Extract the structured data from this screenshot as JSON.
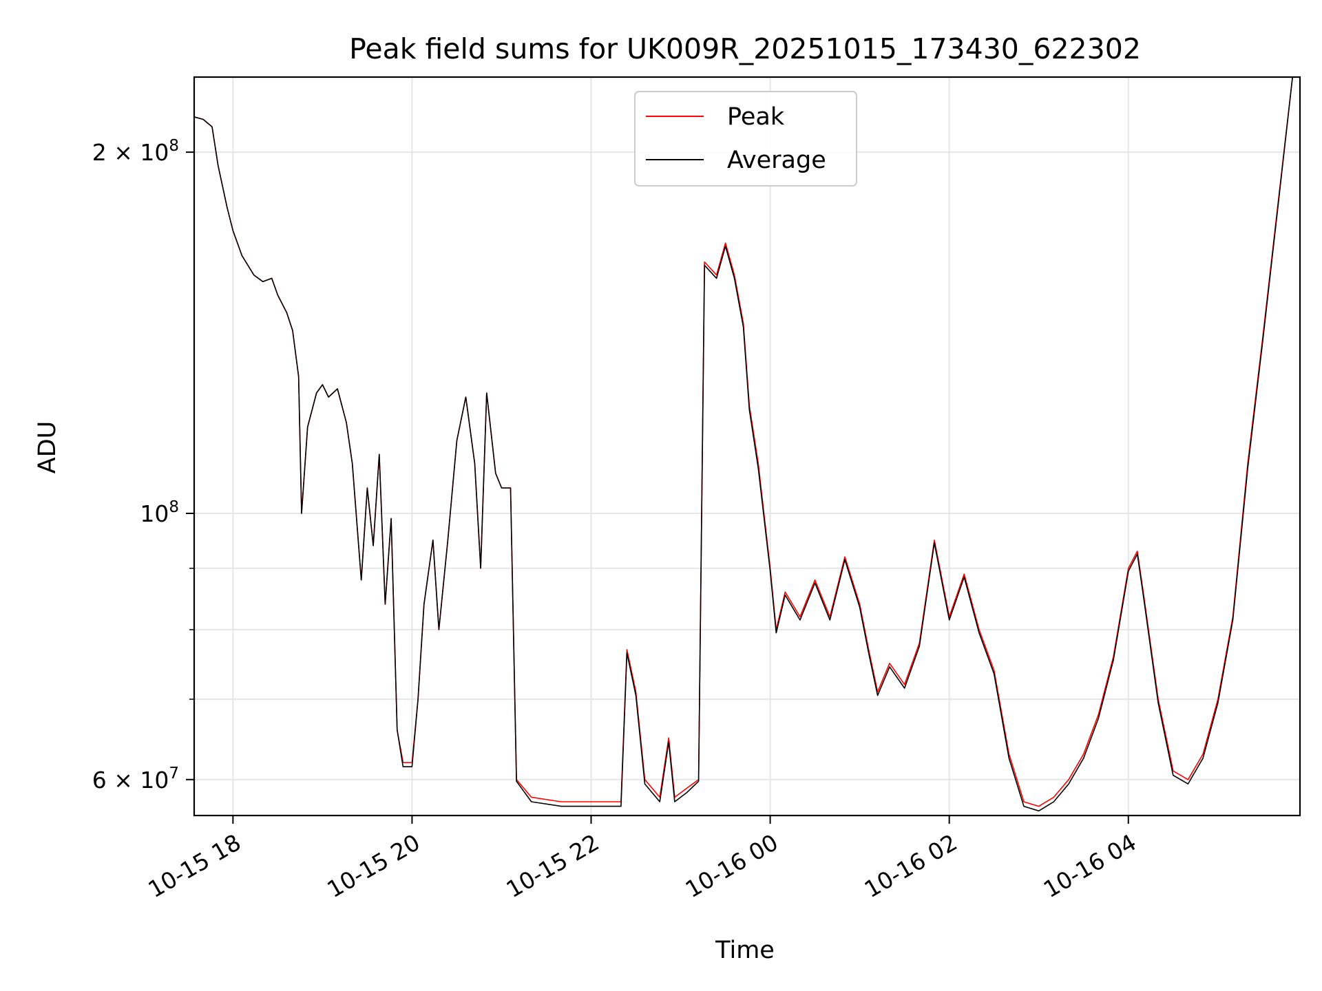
{
  "chart_data": {
    "type": "line",
    "title": "Peak field sums for UK009R_20251015_173430_622302",
    "xlabel": "Time",
    "ylabel": "ADU",
    "x_is_time": true,
    "xlim": [
      "2025-10-15T17:34",
      "2025-10-16T05:55"
    ],
    "ylim": [
      56000000,
      231000000
    ],
    "yscale": "log",
    "grid": true,
    "legend_position": "top-center",
    "x_ticks": [
      {
        "value": "2025-10-15T18:00",
        "label": "10-15 18"
      },
      {
        "value": "2025-10-15T20:00",
        "label": "10-15 20"
      },
      {
        "value": "2025-10-15T22:00",
        "label": "10-15 22"
      },
      {
        "value": "2025-10-16T00:00",
        "label": "10-16 00"
      },
      {
        "value": "2025-10-16T02:00",
        "label": "10-16 02"
      },
      {
        "value": "2025-10-16T04:00",
        "label": "10-16 04"
      }
    ],
    "y_ticks": [
      {
        "value": 60000000,
        "base": "6",
        "exp": "7"
      },
      {
        "value": 100000000,
        "base": "",
        "exp": "8"
      },
      {
        "value": 200000000,
        "base": "2",
        "exp": "8"
      }
    ],
    "y_minor_grid": [
      70000000,
      80000000,
      90000000
    ],
    "x": [
      "2025-10-15T17:34",
      "2025-10-15T17:40",
      "2025-10-15T17:46",
      "2025-10-15T17:50",
      "2025-10-15T17:56",
      "2025-10-15T18:00",
      "2025-10-15T18:06",
      "2025-10-15T18:14",
      "2025-10-15T18:20",
      "2025-10-15T18:26",
      "2025-10-15T18:30",
      "2025-10-15T18:36",
      "2025-10-15T18:40",
      "2025-10-15T18:44",
      "2025-10-15T18:46",
      "2025-10-15T18:50",
      "2025-10-15T18:56",
      "2025-10-15T19:00",
      "2025-10-15T19:04",
      "2025-10-15T19:10",
      "2025-10-15T19:16",
      "2025-10-15T19:20",
      "2025-10-15T19:26",
      "2025-10-15T19:30",
      "2025-10-15T19:34",
      "2025-10-15T19:38",
      "2025-10-15T19:42",
      "2025-10-15T19:46",
      "2025-10-15T19:50",
      "2025-10-15T19:54",
      "2025-10-15T20:00",
      "2025-10-15T20:04",
      "2025-10-15T20:08",
      "2025-10-15T20:14",
      "2025-10-15T20:18",
      "2025-10-15T20:24",
      "2025-10-15T20:30",
      "2025-10-15T20:36",
      "2025-10-15T20:42",
      "2025-10-15T20:46",
      "2025-10-15T20:50",
      "2025-10-15T20:56",
      "2025-10-15T21:00",
      "2025-10-15T21:06",
      "2025-10-15T21:10",
      "2025-10-15T21:20",
      "2025-10-15T21:40",
      "2025-10-15T22:00",
      "2025-10-15T22:20",
      "2025-10-15T22:24",
      "2025-10-15T22:30",
      "2025-10-15T22:36",
      "2025-10-15T22:46",
      "2025-10-15T22:52",
      "2025-10-15T22:56",
      "2025-10-15T23:04",
      "2025-10-15T23:12",
      "2025-10-15T23:16",
      "2025-10-15T23:24",
      "2025-10-15T23:30",
      "2025-10-15T23:36",
      "2025-10-15T23:42",
      "2025-10-15T23:46",
      "2025-10-15T23:52",
      "2025-10-16T00:00",
      "2025-10-16T00:04",
      "2025-10-16T00:10",
      "2025-10-16T00:20",
      "2025-10-16T00:30",
      "2025-10-16T00:40",
      "2025-10-16T00:50",
      "2025-10-16T01:00",
      "2025-10-16T01:06",
      "2025-10-16T01:12",
      "2025-10-16T01:20",
      "2025-10-16T01:30",
      "2025-10-16T01:40",
      "2025-10-16T01:50",
      "2025-10-16T02:00",
      "2025-10-16T02:10",
      "2025-10-16T02:20",
      "2025-10-16T02:30",
      "2025-10-16T02:40",
      "2025-10-16T02:50",
      "2025-10-16T03:00",
      "2025-10-16T03:10",
      "2025-10-16T03:20",
      "2025-10-16T03:30",
      "2025-10-16T03:40",
      "2025-10-16T03:50",
      "2025-10-16T04:00",
      "2025-10-16T04:06",
      "2025-10-16T04:10",
      "2025-10-16T04:20",
      "2025-10-16T04:30",
      "2025-10-16T04:40",
      "2025-10-16T04:50",
      "2025-10-16T05:00",
      "2025-10-16T05:10",
      "2025-10-16T05:20",
      "2025-10-16T05:30",
      "2025-10-16T05:40",
      "2025-10-16T05:50",
      "2025-10-16T05:55"
    ],
    "series": [
      {
        "name": "Peak",
        "color": "#ff0000",
        "values": [
          214000000,
          213000000,
          210000000,
          195000000,
          180000000,
          172000000,
          164000000,
          158000000,
          156000000,
          157000000,
          152000000,
          147000000,
          142000000,
          130000000,
          100000000,
          118000000,
          126000000,
          128000000,
          125000000,
          127000000,
          119000000,
          110000000,
          88000000,
          105000000,
          94000000,
          112000000,
          84000000,
          99000000,
          66000000,
          62000000,
          62000000,
          70000000,
          84000000,
          95000000,
          80000000,
          95000000,
          115000000,
          125000000,
          110000000,
          90000000,
          126000000,
          108000000,
          105000000,
          105000000,
          60000000,
          58000000,
          57500000,
          57500000,
          57500000,
          77000000,
          71000000,
          60000000,
          58000000,
          65000000,
          58000000,
          59000000,
          60000000,
          162000000,
          158000000,
          168000000,
          158000000,
          144000000,
          123000000,
          110000000,
          90000000,
          80000000,
          86000000,
          82000000,
          88000000,
          82000000,
          92000000,
          84000000,
          77000000,
          71000000,
          75000000,
          72000000,
          78000000,
          95000000,
          82000000,
          89000000,
          80000000,
          74000000,
          63000000,
          57500000,
          57000000,
          58000000,
          60000000,
          63000000,
          68000000,
          76000000,
          90000000,
          93000000,
          86000000,
          70000000,
          61000000,
          60000000,
          63000000,
          70000000,
          82000000,
          110000000,
          140000000,
          180000000,
          231000000,
          231000000
        ]
      },
      {
        "name": "Average",
        "color": "#000000",
        "values": [
          214000000,
          213000000,
          210000000,
          195000000,
          180000000,
          172000000,
          164000000,
          158000000,
          156000000,
          157000000,
          152000000,
          147000000,
          142000000,
          130000000,
          100000000,
          118000000,
          126000000,
          128000000,
          125000000,
          127000000,
          119000000,
          110000000,
          88000000,
          105000000,
          94000000,
          112000000,
          84000000,
          99000000,
          66000000,
          61500000,
          61500000,
          70000000,
          84000000,
          95000000,
          80000000,
          95000000,
          115000000,
          125000000,
          110000000,
          90000000,
          126000000,
          108000000,
          105000000,
          105000000,
          59800000,
          57500000,
          57000000,
          57000000,
          57000000,
          76500000,
          70500000,
          59500000,
          57500000,
          64500000,
          57500000,
          58500000,
          59800000,
          161000000,
          157000000,
          167000000,
          157000000,
          143000000,
          122000000,
          109000000,
          89500000,
          79500000,
          85500000,
          81500000,
          87500000,
          81500000,
          91500000,
          83500000,
          76500000,
          70500000,
          74500000,
          71500000,
          77500000,
          94500000,
          81500000,
          88500000,
          79500000,
          73500000,
          62500000,
          57000000,
          56500000,
          57500000,
          59500000,
          62500000,
          67500000,
          75500000,
          89500000,
          92500000,
          85500000,
          69500000,
          60500000,
          59500000,
          62500000,
          69500000,
          81500000,
          109000000,
          139000000,
          179000000,
          231000000,
          231000000
        ]
      }
    ]
  }
}
